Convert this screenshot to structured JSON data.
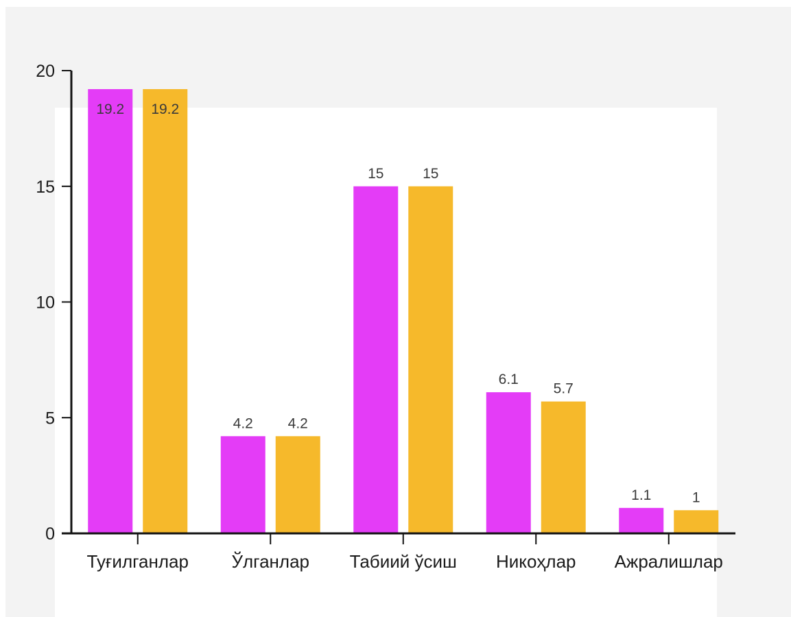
{
  "chart_data": {
    "type": "bar",
    "categories": [
      "Туғилганлар",
      "Ўлганлар",
      "Табиий ўсиш",
      "Никоҳлар",
      "Ажралишлар"
    ],
    "series": [
      {
        "values": [
          19.2,
          4.2,
          15,
          6.1,
          1.1
        ],
        "labels": [
          "19.2",
          "4.2",
          "15",
          "6.1",
          "1.1"
        ],
        "color": "#e43cf7"
      },
      {
        "values": [
          19.2,
          4.2,
          15,
          5.7,
          1.0
        ],
        "labels": [
          "19.2",
          "4.2",
          "15",
          "5.7",
          "1"
        ],
        "color": "#f6b92b"
      }
    ],
    "ylim": [
      0,
      20
    ],
    "yticks": [
      "0",
      "5",
      "10",
      "15",
      "20"
    ],
    "grid": false,
    "title": "",
    "xlabel": "",
    "ylabel": ""
  }
}
